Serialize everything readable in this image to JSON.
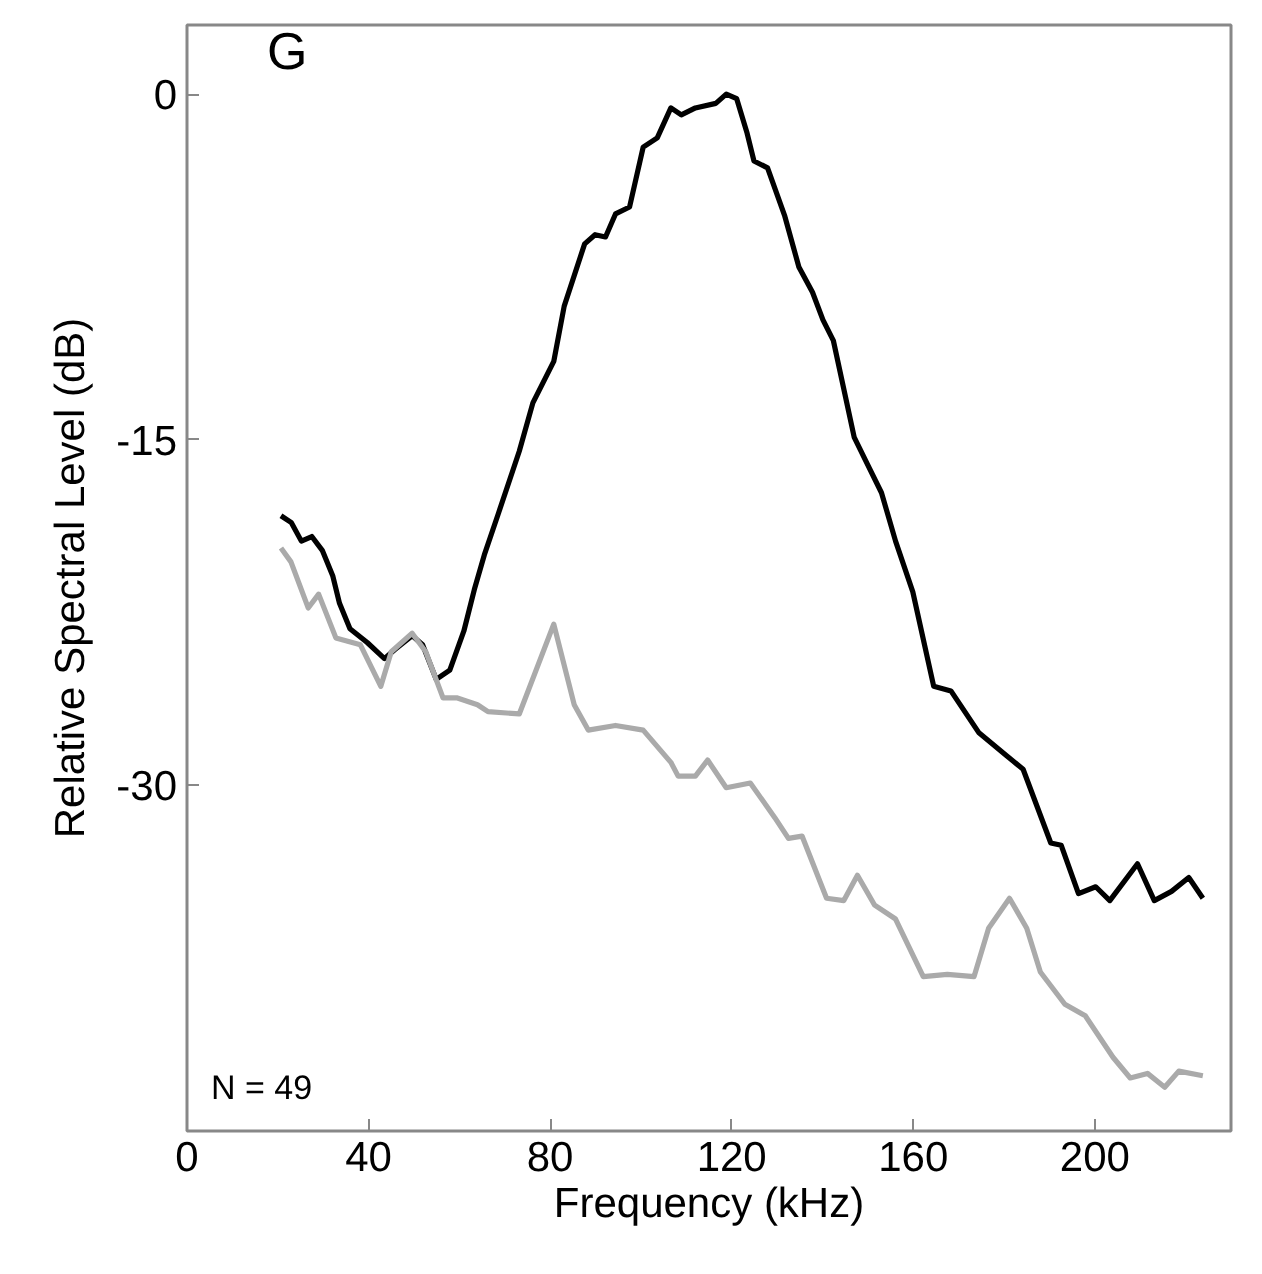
{
  "chart_data": {
    "type": "line",
    "xlabel": "Frequency (kHz)",
    "ylabel": "Relative Spectral Level (dB)",
    "annotations": [
      "G",
      "N = 49"
    ],
    "xlim": [
      0,
      230
    ],
    "ylim": [
      -45,
      3
    ],
    "xticks": [
      0,
      40,
      80,
      120,
      160,
      200
    ],
    "yticks": [
      0,
      -15,
      -30
    ],
    "grid": false,
    "marker": "none",
    "line_style": "solid",
    "series": [
      {
        "color": "#000000",
        "x": [
          20.7,
          23,
          25.2,
          27.5,
          29.8,
          32.1,
          33.6,
          35.9,
          39.7,
          43.5,
          45.8,
          49.6,
          51.9,
          54.9,
          57.9,
          61,
          63.3,
          65.5,
          68.6,
          73.2,
          76.2,
          80.8,
          83.1,
          87.6,
          89.9,
          92.2,
          94.4,
          97.5,
          100.5,
          103.6,
          106.6,
          108.9,
          112,
          116.5,
          118.8,
          121.1,
          123.4,
          124.9,
          127.9,
          131.7,
          134.8,
          137.8,
          140.1,
          142.4,
          147,
          150,
          153,
          156.1,
          159.9,
          164.5,
          168.3,
          174.4,
          180.5,
          184.2,
          190.3,
          192.6,
          196.4,
          200.2,
          203.3,
          209.4,
          213.1,
          216.9,
          220.7,
          223.8
        ],
        "values": [
          -18.3,
          -18.6,
          -19.4,
          -19.2,
          -19.8,
          -20.9,
          -22.1,
          -23.2,
          -23.8,
          -24.5,
          -24.1,
          -23.5,
          -23.9,
          -25.4,
          -25.0,
          -23.3,
          -21.5,
          -20.0,
          -18.2,
          -15.5,
          -13.4,
          -11.6,
          -9.2,
          -6.5,
          -6.1,
          -6.2,
          -5.2,
          -4.9,
          -2.3,
          -1.9,
          -0.6,
          -0.9,
          -0.6,
          -0.4,
          0,
          -0.2,
          -1.7,
          -2.9,
          -3.2,
          -5.3,
          -7.5,
          -8.6,
          -9.8,
          -10.7,
          -14.9,
          -16.1,
          -17.3,
          -19.4,
          -21.6,
          -25.7,
          -25.9,
          -27.7,
          -28.7,
          -29.3,
          -32.5,
          -32.6,
          -34.7,
          -34.4,
          -35.0,
          -33.4,
          -35.0,
          -34.6,
          -34.0,
          -34.9
        ]
      },
      {
        "color": "#aaaaaa",
        "x": [
          20.7,
          22.9,
          26.7,
          29,
          32.8,
          38.2,
          42.7,
          45,
          49.6,
          52.6,
          56.4,
          59.4,
          64,
          66.3,
          73.2,
          80.8,
          85.3,
          88.4,
          94.4,
          100.5,
          106.6,
          108.2,
          112,
          114.7,
          118.8,
          124.1,
          129.5,
          132.5,
          135.5,
          140.9,
          144.7,
          147.7,
          151.5,
          156.1,
          162.2,
          167.5,
          173.4,
          176.6,
          181.2,
          185,
          188,
          193.4,
          197.9,
          204,
          207.8,
          211.6,
          215.4,
          218.5,
          223.8
        ],
        "values": [
          -19.7,
          -20.3,
          -22.3,
          -21.7,
          -23.6,
          -23.9,
          -25.7,
          -24.2,
          -23.4,
          -24.2,
          -26.2,
          -26.2,
          -26.5,
          -26.8,
          -26.9,
          -23.0,
          -26.5,
          -27.6,
          -27.4,
          -27.6,
          -29.0,
          -29.6,
          -29.6,
          -28.9,
          -30.1,
          -29.9,
          -31.4,
          -32.3,
          -32.2,
          -34.9,
          -35.0,
          -33.9,
          -35.2,
          -35.8,
          -38.3,
          -38.2,
          -38.3,
          -36.2,
          -34.9,
          -36.2,
          -38.1,
          -39.5,
          -40.0,
          -41.8,
          -42.7,
          -42.5,
          -43.1,
          -42.4,
          -42.6
        ]
      }
    ]
  }
}
